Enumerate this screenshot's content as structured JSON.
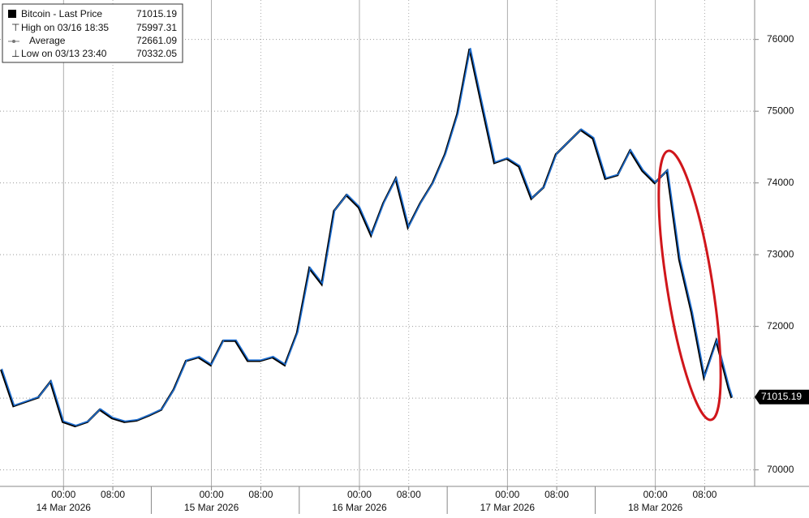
{
  "chart_data": {
    "type": "line",
    "legend": {
      "series_label": "Bitcoin - Last Price",
      "last_value": 71015.19,
      "stats": [
        {
          "label": "High on 03/16 18:35",
          "value": 75997.31
        },
        {
          "label": "Average",
          "value": 72661.09
        },
        {
          "label": "Low on 03/13 23:40",
          "value": 70332.05
        }
      ]
    },
    "x": [
      -10,
      -8,
      -6,
      -4,
      -2,
      0,
      2,
      4,
      6,
      8,
      10,
      12,
      14,
      16,
      18,
      20,
      22,
      24,
      26,
      28,
      30,
      32,
      34,
      36,
      38,
      40,
      42,
      44,
      46,
      48,
      50,
      52,
      54,
      56,
      58,
      60,
      62,
      64,
      66,
      68,
      70,
      72,
      74,
      76,
      78,
      80,
      82,
      84,
      86,
      88,
      90,
      92,
      94,
      96,
      98,
      100,
      102,
      104,
      106,
      108,
      108.5
    ],
    "series": [
      {
        "name": "Bitcoin - Last Price",
        "color": "#1f6fd1",
        "values": [
          71410,
          70900,
          70960,
          71020,
          71240,
          70680,
          70620,
          70680,
          70850,
          70730,
          70680,
          70700,
          70770,
          70850,
          71130,
          71530,
          71580,
          71470,
          71810,
          71810,
          71530,
          71530,
          71580,
          71470,
          71920,
          72820,
          72600,
          73620,
          73840,
          73670,
          73280,
          73730,
          74070,
          73390,
          73730,
          74010,
          74410,
          74970,
          75880,
          75080,
          74290,
          74350,
          74240,
          73790,
          73950,
          74410,
          74580,
          74750,
          74630,
          74070,
          74120,
          74460,
          74180,
          74010,
          74180,
          72940,
          72200,
          71300,
          71810,
          71150,
          71015.19
        ]
      }
    ],
    "xlim": [
      -10.3,
      112.1
    ],
    "xticks": [
      {
        "value": 0,
        "label": "00:00"
      },
      {
        "value": 8,
        "label": "08:00"
      },
      {
        "value": 24,
        "label": "00:00"
      },
      {
        "value": 32,
        "label": "08:00"
      },
      {
        "value": 48,
        "label": "00:00"
      },
      {
        "value": 56,
        "label": "08:00"
      },
      {
        "value": 72,
        "label": "00:00"
      },
      {
        "value": 80,
        "label": "08:00"
      },
      {
        "value": 96,
        "label": "00:00"
      },
      {
        "value": 104,
        "label": "08:00"
      }
    ],
    "date_labels": [
      {
        "value": 0,
        "label": "14 Mar 2026"
      },
      {
        "value": 24,
        "label": "15 Mar 2026"
      },
      {
        "value": 48,
        "label": "16 Mar 2026"
      },
      {
        "value": 72,
        "label": "17 Mar 2026"
      },
      {
        "value": 96,
        "label": "18 Mar 2026"
      }
    ],
    "ylim": [
      69770,
      76550
    ],
    "yticks": [
      70000,
      71000,
      72000,
      73000,
      74000,
      75000,
      76000
    ],
    "grid": true
  }
}
